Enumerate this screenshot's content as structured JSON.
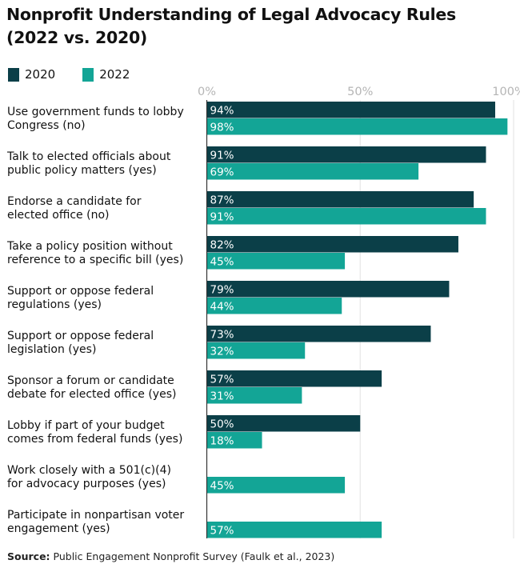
{
  "chart_data": {
    "type": "bar",
    "orientation": "horizontal",
    "title": "Nonprofit Understanding of Legal Advocacy Rules (2022 vs. 2020)",
    "title_lines": [
      "Nonprofit Understanding of Legal Advocacy Rules",
      "(2022 vs. 2020)"
    ],
    "categories": [
      [
        "Use government funds to lobby",
        "Congress (no)"
      ],
      [
        "Talk to elected officials about",
        "public policy matters (yes)"
      ],
      [
        "Endorse a candidate for",
        "elected office (no)"
      ],
      [
        "Take a policy position without",
        "reference to a specific bill (yes)"
      ],
      [
        "Support or oppose federal",
        "regulations (yes)"
      ],
      [
        "Support or oppose federal",
        "legislation (yes)"
      ],
      [
        "Sponsor a forum or candidate",
        "debate for elected office (yes)"
      ],
      [
        "Lobby if part of your budget",
        "comes from federal funds (yes)"
      ],
      [
        "Work closely with a 501(c)(4)",
        "for advocacy purposes (yes)"
      ],
      [
        "Participate in nonpartisan voter",
        "engagement (yes)"
      ]
    ],
    "series": [
      {
        "name": "2020",
        "color": "#0b3f48",
        "values": [
          94,
          91,
          87,
          82,
          79,
          73,
          57,
          50,
          null,
          null
        ]
      },
      {
        "name": "2022",
        "color": "#13a596",
        "values": [
          98,
          69,
          91,
          45,
          44,
          32,
          31,
          18,
          45,
          57
        ]
      }
    ],
    "xlim": [
      0,
      100
    ],
    "xticks": [
      "0%",
      "50%",
      "100%"
    ],
    "xtick_values": [
      0,
      50,
      100
    ],
    "legend": "top-left",
    "grid": true,
    "value_suffix": "%"
  },
  "source": {
    "label": "Source:",
    "text": "Public Engagement Nonprofit Survey (Faulk et al., 2023)"
  }
}
